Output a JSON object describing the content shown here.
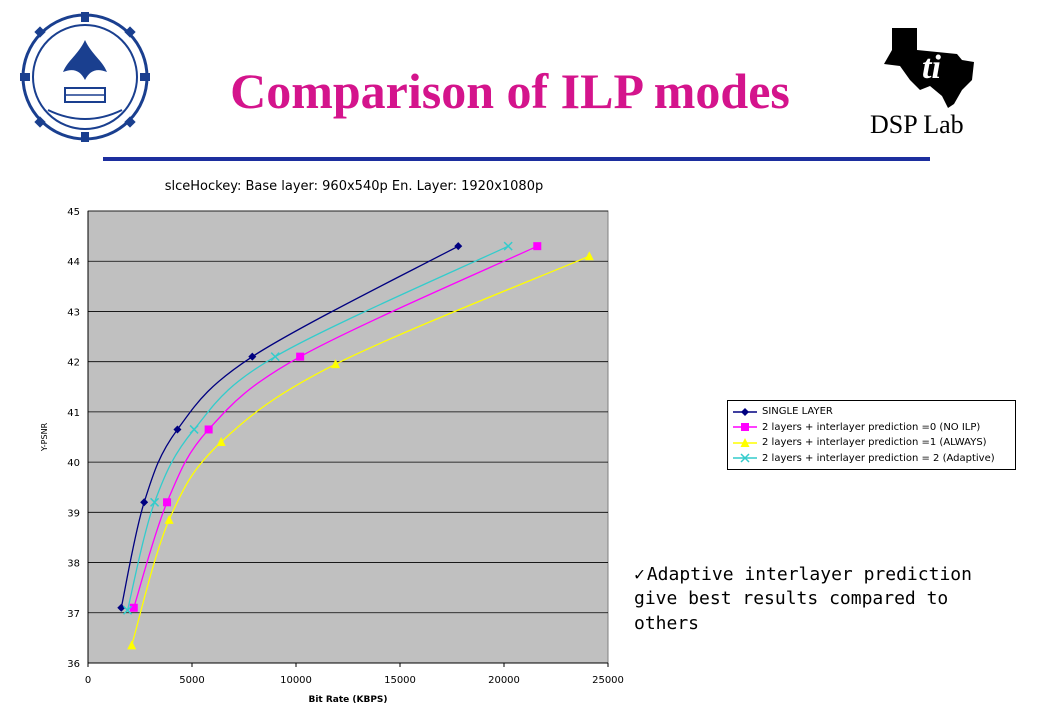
{
  "slide": {
    "title": "Comparison of ILP modes",
    "logo_right_text": "DSP Lab",
    "bullet_text": "Adaptive interlayer prediction give best results compared to others"
  },
  "colors": {
    "title": "#d4148c",
    "rule": "#1c2e9e",
    "plot_bg": "#c0c0c0"
  },
  "chart_data": {
    "type": "line",
    "title": "slceHockey: Base layer: 960x540p En. Layer: 1920x1080p",
    "xlabel": "Bit Rate (KBPS)",
    "ylabel": "Y-PSNR",
    "xlim": [
      0,
      25000
    ],
    "ylim": [
      36,
      45
    ],
    "x_ticks": [
      "0",
      "5000",
      "10000",
      "15000",
      "20000",
      "25000"
    ],
    "y_ticks": [
      "36",
      "37",
      "38",
      "39",
      "40",
      "41",
      "42",
      "43",
      "44",
      "45"
    ],
    "grid": "horizontal",
    "legend_position": "right",
    "series": [
      {
        "name": "SINGLE LAYER",
        "color": "#000080",
        "marker": "diamond",
        "x": [
          1600,
          2700,
          4300,
          7900,
          17800
        ],
        "y": [
          37.1,
          39.2,
          40.65,
          42.1,
          44.3
        ]
      },
      {
        "name": "2 layers + interlayer prediction =0 (NO ILP)",
        "color": "#ff00ff",
        "marker": "square",
        "x": [
          2200,
          3800,
          5800,
          10200,
          21600
        ],
        "y": [
          37.1,
          39.2,
          40.65,
          42.1,
          44.3
        ]
      },
      {
        "name": "2 layers + interlayer prediction =1 (ALWAYS)",
        "color": "#ffff00",
        "marker": "triangle",
        "x": [
          2100,
          3900,
          6400,
          11900,
          24100
        ],
        "y": [
          36.35,
          38.85,
          40.4,
          41.95,
          44.1
        ]
      },
      {
        "name": "2 layers + interlayer prediction = 2 (Adaptive)",
        "color": "#33cccc",
        "marker": "x",
        "x": [
          1900,
          3200,
          5100,
          9000,
          20200
        ],
        "y": [
          37.05,
          39.2,
          40.65,
          42.1,
          44.3
        ]
      }
    ]
  }
}
